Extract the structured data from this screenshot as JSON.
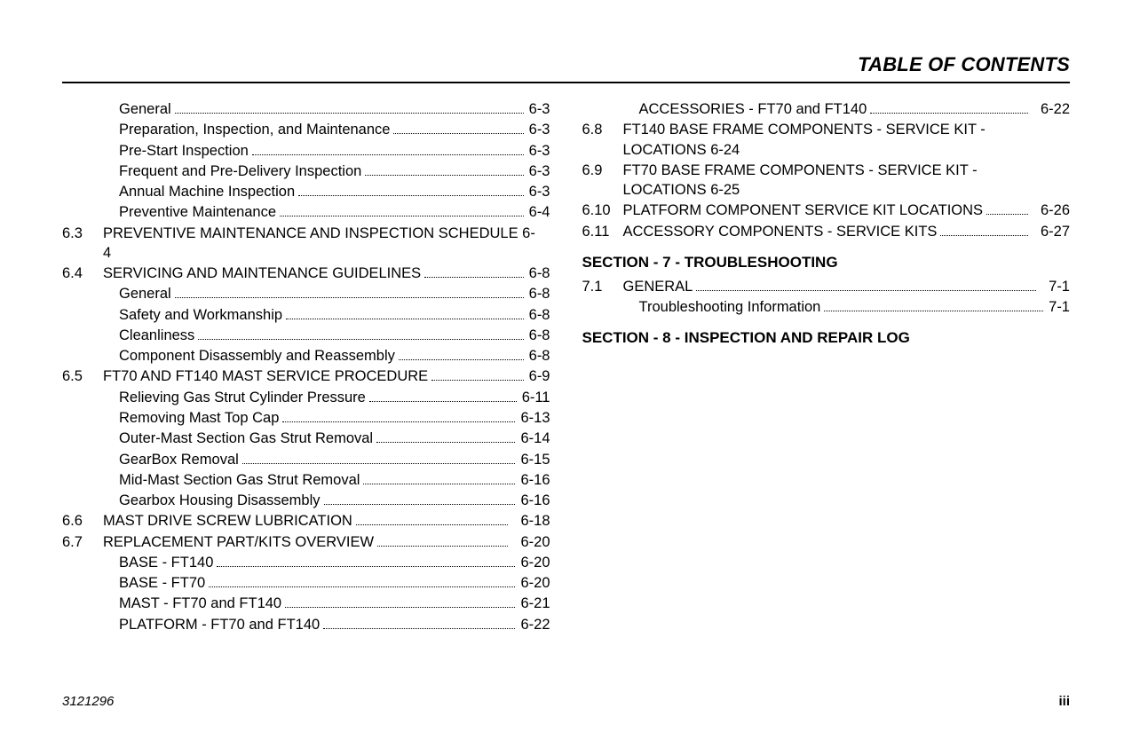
{
  "header": {
    "title": "TABLE OF CONTENTS"
  },
  "footer": {
    "docnum": "3121296",
    "pagenum": "iii"
  },
  "left": [
    {
      "type": "sub",
      "label": "General",
      "page": "6-3"
    },
    {
      "type": "sub",
      "label": "Preparation, Inspection, and Maintenance",
      "page": "6-3"
    },
    {
      "type": "sub",
      "label": "Pre-Start Inspection",
      "page": "6-3"
    },
    {
      "type": "sub",
      "label": "Frequent and Pre-Delivery Inspection",
      "page": "6-3"
    },
    {
      "type": "sub",
      "label": "Annual Machine Inspection",
      "page": "6-3"
    },
    {
      "type": "sub",
      "label": "Preventive Maintenance",
      "page": "6-4"
    },
    {
      "type": "main",
      "num": "6.3",
      "label": "PREVENTIVE MAINTENANCE AND INSPECTION SCHEDULE 6-4",
      "noleader": true
    },
    {
      "type": "main",
      "num": "6.4",
      "label": "SERVICING AND MAINTENANCE GUIDELINES",
      "page": "6-8"
    },
    {
      "type": "sub",
      "label": "General",
      "page": "6-8"
    },
    {
      "type": "sub",
      "label": "Safety and Workmanship",
      "page": "6-8"
    },
    {
      "type": "sub",
      "label": "Cleanliness",
      "page": "6-8"
    },
    {
      "type": "sub",
      "label": "Component Disassembly and Reassembly",
      "page": "6-8"
    },
    {
      "type": "main",
      "num": "6.5",
      "label": "FT70 AND FT140 MAST SERVICE PROCEDURE",
      "page": "6-9"
    },
    {
      "type": "sub",
      "label": "Relieving Gas Strut Cylinder Pressure",
      "page": "6-11"
    },
    {
      "type": "sub",
      "label": "Removing Mast Top Cap",
      "page": "6-13"
    },
    {
      "type": "sub",
      "label": "Outer-Mast Section Gas Strut Removal",
      "page": "6-14"
    },
    {
      "type": "sub",
      "label": "GearBox Removal",
      "page": "6-15"
    },
    {
      "type": "sub",
      "label": "Mid-Mast Section Gas Strut Removal",
      "page": "6-16"
    },
    {
      "type": "sub",
      "label": "Gearbox Housing Disassembly",
      "page": "6-16"
    },
    {
      "type": "main",
      "num": "6.6",
      "label": "MAST DRIVE SCREW LUBRICATION",
      "page": "6-18",
      "pad": true
    },
    {
      "type": "main",
      "num": "6.7",
      "label": "REPLACEMENT PART/KITS OVERVIEW",
      "page": "6-20",
      "pad": true
    },
    {
      "type": "sub",
      "label": "BASE - FT140",
      "page": "6-20"
    },
    {
      "type": "sub",
      "label": "BASE - FT70",
      "page": "6-20"
    },
    {
      "type": "sub",
      "label": "MAST - FT70 and FT140",
      "page": "6-21"
    },
    {
      "type": "sub",
      "label": "PLATFORM - FT70 and FT140",
      "page": "6-22"
    }
  ],
  "right": [
    {
      "type": "sub",
      "label": "ACCESSORIES - FT70 and FT140",
      "page": "6-22",
      "pad": true
    },
    {
      "type": "main",
      "num": "6.8",
      "label": "FT140 BASE FRAME COMPONENTS - SERVICE KIT - LOCATIONS 6-24",
      "noleader": true
    },
    {
      "type": "main",
      "num": "6.9",
      "label": "FT70 BASE FRAME COMPONENTS - SERVICE KIT - LOCATIONS 6-25",
      "noleader": true
    },
    {
      "type": "main",
      "num": "6.10",
      "label": "PLATFORM COMPONENT SERVICE KIT LOCATIONS",
      "page": "6-26",
      "pad": true
    },
    {
      "type": "main",
      "num": "6.11",
      "label": "ACCESSORY COMPONENTS - SERVICE KITS",
      "page": "6-27",
      "pad": true
    },
    {
      "type": "section",
      "label": "SECTION - 7 -  TROUBLESHOOTING"
    },
    {
      "type": "main",
      "num": "7.1",
      "label": "GENERAL",
      "page": "7-1",
      "pad": true
    },
    {
      "type": "sub",
      "label": "Troubleshooting Information",
      "page": "7-1"
    },
    {
      "type": "section",
      "label": "SECTION - 8 -  INSPECTION AND REPAIR LOG"
    }
  ]
}
